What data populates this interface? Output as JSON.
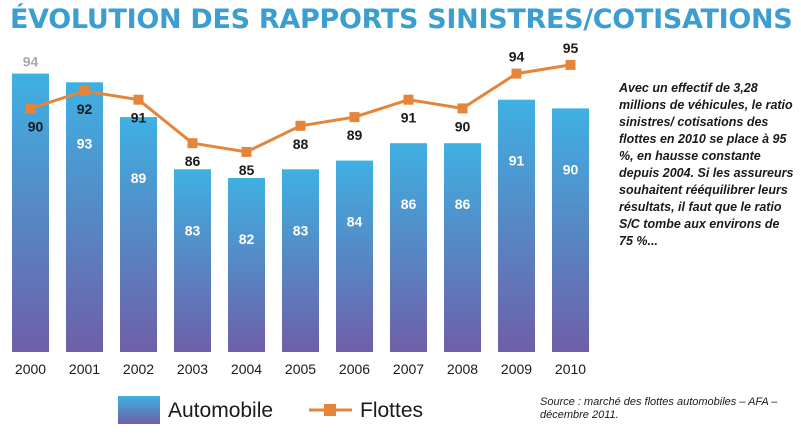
{
  "colors": {
    "title": "#3b9ecf",
    "bar_top": "#3fb0e2",
    "bar_bottom": "#6e5fa8",
    "line": "#e4853a",
    "text": "#1a1a1a",
    "outside_bar_label": "#a8a8a8"
  },
  "header": {
    "title": "ÉVOLUTION DES RAPPORTS SINISTRES/COTISATIONS"
  },
  "annotation": "Avec un effectif de 3,28 millions de véhicules, le ratio sinistres/ cotisations des flottes en 2010 se place à 95 %, en hausse constante depuis 2004. Si les assureurs souhaitent rééquilibrer leurs résultats, il faut que le ratio S/C tombe aux environs de 75 %...",
  "source": "Source : marché des flottes automobiles – AFA – décembre 2011.",
  "chart_data": {
    "type": "bar",
    "title": "",
    "xlabel": "",
    "ylabel": "",
    "categories": [
      "2000",
      "2001",
      "2002",
      "2003",
      "2004",
      "2005",
      "2006",
      "2007",
      "2008",
      "2009",
      "2010"
    ],
    "series": [
      {
        "name": "Automobile",
        "type": "bar",
        "values": [
          94,
          93,
          89,
          83,
          82,
          83,
          84,
          86,
          86,
          91,
          90
        ]
      },
      {
        "name": "Flottes",
        "type": "line",
        "values": [
          90,
          92,
          91,
          86,
          85,
          88,
          89,
          91,
          90,
          94,
          95
        ]
      }
    ],
    "ylim": [
      62,
      96
    ],
    "grid": false,
    "legend": "bottom-left"
  }
}
